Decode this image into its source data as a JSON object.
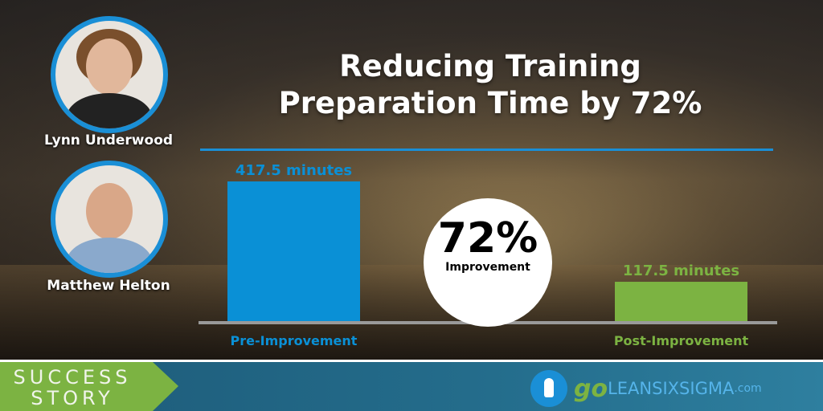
{
  "title": {
    "line1": "Reducing Training",
    "line2": "Preparation Time by 72%"
  },
  "people": [
    {
      "name": "Lynn Underwood"
    },
    {
      "name": "Matthew Helton"
    }
  ],
  "callout": {
    "value": "72%",
    "label": "Improvement"
  },
  "chart_data": {
    "type": "bar",
    "categories": [
      "Pre-Improvement",
      "Post-Improvement"
    ],
    "values": [
      417.5,
      117.5
    ],
    "data_labels": [
      "417.5 minutes",
      "117.5 minutes"
    ],
    "colors": [
      "#0a90d6",
      "#7cb342"
    ],
    "ylim": [
      0,
      417.5
    ],
    "grid": false,
    "xlabel": "",
    "ylabel": ""
  },
  "footer": {
    "badge_line1": "SUCCESS",
    "badge_line2": "STORY",
    "logo_go": "go",
    "logo_main": "LEANSIXSIGMA",
    "logo_suffix": ".com"
  }
}
